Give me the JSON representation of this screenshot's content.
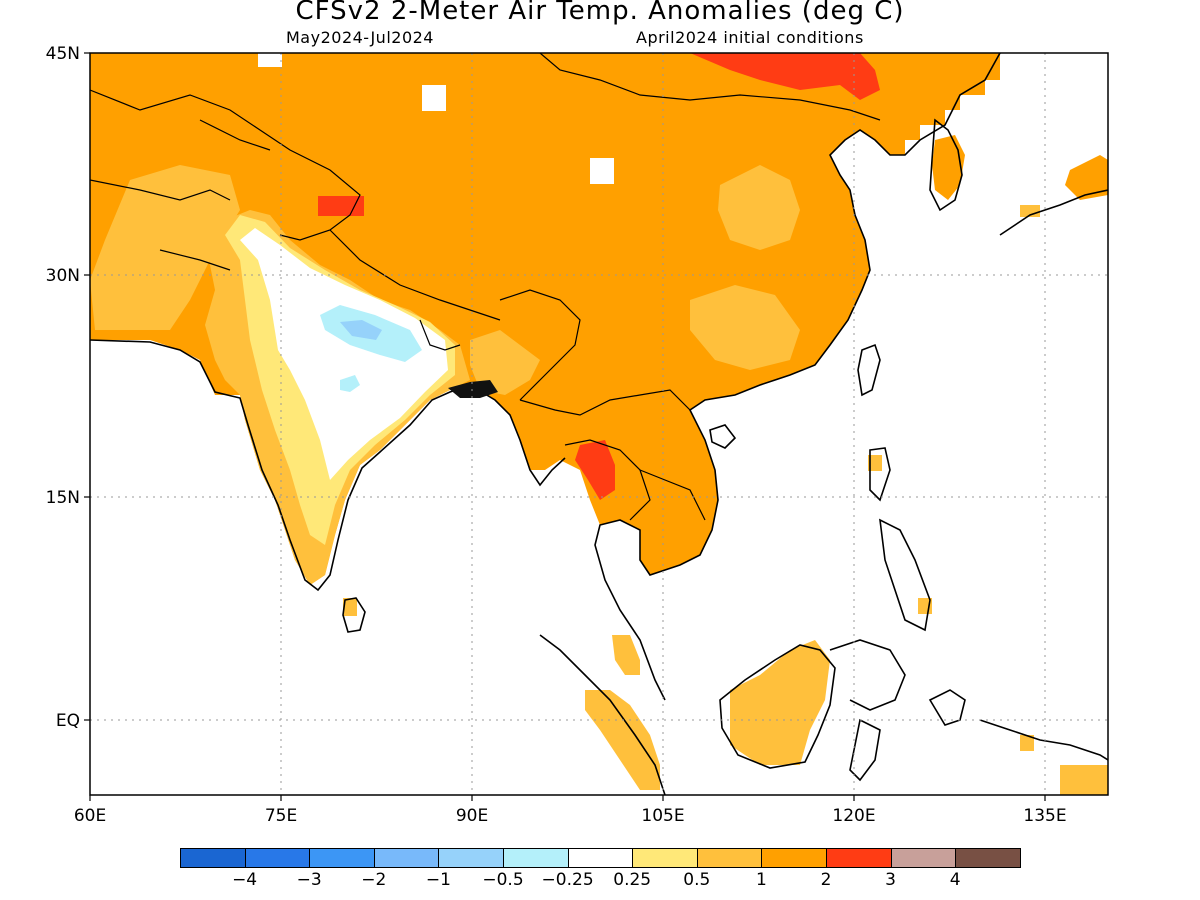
{
  "header": {
    "title": "CFSv2 2-Meter Air Temp. Anomalies (deg C)",
    "period": "May2024-Jul2024",
    "initial_conditions": "April2024 initial conditions"
  },
  "map": {
    "lat_labels": [
      "45N",
      "30N",
      "15N",
      "EQ"
    ],
    "lon_labels": [
      "60E",
      "75E",
      "90E",
      "105E",
      "120E",
      "135E"
    ],
    "lat_range": [
      -5,
      45
    ],
    "lon_range": [
      60,
      140
    ],
    "land_anomaly_default": "1 to 2",
    "regions_described": [
      {
        "name": "Mongolia / N China",
        "anomaly": "2 to 3"
      },
      {
        "name": "Central India",
        "anomaly": "-0.25 to 0.25 with -1 to -0.5 patch"
      },
      {
        "name": "Thailand",
        "anomaly": "2 to 3"
      },
      {
        "name": "Borneo",
        "anomaly": "0.5 to 1"
      }
    ]
  },
  "colorbar": {
    "colors": [
      "#1a66d2",
      "#2878e8",
      "#3c96f5",
      "#78b9fa",
      "#96d2fa",
      "#b4f0fa",
      "#ffffff",
      "#ffe878",
      "#ffc03c",
      "#ffa000",
      "#ff3c14",
      "#c8a09a",
      "#785044"
    ],
    "labels": [
      "−4",
      "−3",
      "−2",
      "−1",
      "−0.5",
      "−0.25",
      "0.25",
      "0.5",
      "1",
      "2",
      "3",
      "4"
    ]
  }
}
